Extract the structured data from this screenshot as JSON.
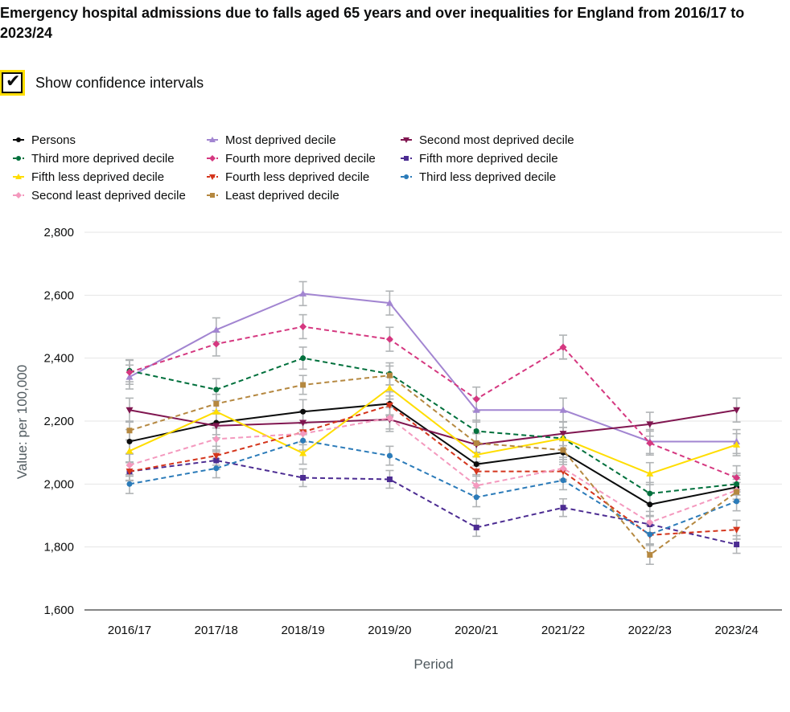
{
  "title": "Emergency hospital admissions due to falls aged 65 years and over inequalities for England from 2016/17 to 2023/24",
  "controls": {
    "ci_label": "Show confidence intervals",
    "ci_checked": true,
    "check_glyph": "✔"
  },
  "chart_data": {
    "type": "line",
    "xlabel": "Period",
    "ylabel": "Value: per 100,000",
    "ylim": [
      1600,
      2800
    ],
    "yticks": [
      1600,
      1800,
      2000,
      2200,
      2400,
      2600,
      2800
    ],
    "ytick_labels": [
      "1,600",
      "1,800",
      "2,000",
      "2,200",
      "2,400",
      "2,600",
      "2,800"
    ],
    "categories": [
      "2016/17",
      "2017/18",
      "2018/19",
      "2019/20",
      "2020/21",
      "2021/22",
      "2022/23",
      "2023/24"
    ],
    "grid": "horizontal",
    "legend_position": "top",
    "series": [
      {
        "name": "Persons",
        "color": "#0b0c0c",
        "marker": "circle",
        "dash": false,
        "values": [
          2135,
          2195,
          2230,
          2255,
          2063,
          2100,
          1935,
          1990
        ],
        "ci": 38
      },
      {
        "name": "Most deprived decile",
        "color": "#a285d1",
        "marker": "triangle-up",
        "dash": false,
        "values": [
          2340,
          2490,
          2605,
          2575,
          2235,
          2235,
          2135,
          2135
        ],
        "ci": 38
      },
      {
        "name": "Second most deprived decile",
        "color": "#801650",
        "marker": "triangle-down",
        "dash": false,
        "values": [
          2235,
          2185,
          2195,
          2205,
          2125,
          2160,
          2190,
          2235
        ],
        "ci": 38
      },
      {
        "name": "Third more deprived decile",
        "color": "#00703c",
        "marker": "circle",
        "dash": true,
        "values": [
          2360,
          2300,
          2400,
          2350,
          2168,
          2145,
          1970,
          2000
        ],
        "ci": 35
      },
      {
        "name": "Fourth more deprived decile",
        "color": "#d53880",
        "marker": "diamond",
        "dash": true,
        "values": [
          2355,
          2445,
          2500,
          2460,
          2270,
          2435,
          2130,
          2020
        ],
        "ci": 38
      },
      {
        "name": "Fifth more deprived decile",
        "color": "#4c2c92",
        "marker": "square",
        "dash": true,
        "values": [
          2040,
          2075,
          2020,
          2015,
          1862,
          1925,
          1872,
          1808
        ],
        "ci": 28
      },
      {
        "name": "Fifth less deprived decile",
        "color": "#ffdd00",
        "marker": "triangle-up",
        "dash": false,
        "values": [
          2105,
          2230,
          2098,
          2305,
          2093,
          2145,
          2033,
          2125
        ],
        "ci": 35
      },
      {
        "name": "Fourth less deprived decile",
        "color": "#d4351c",
        "marker": "triangle-down",
        "dash": true,
        "values": [
          2040,
          2090,
          2165,
          2250,
          2040,
          2040,
          1838,
          1855
        ],
        "ci": 30
      },
      {
        "name": "Third less deprived decile",
        "color": "#2b7bb9",
        "marker": "circle",
        "dash": true,
        "values": [
          2000,
          2050,
          2138,
          2090,
          1958,
          2012,
          1840,
          1945
        ],
        "ci": 30
      },
      {
        "name": "Second least deprived decile",
        "color": "#f499be",
        "marker": "diamond",
        "dash": true,
        "values": [
          2060,
          2143,
          2160,
          2210,
          1995,
          2050,
          1878,
          1980
        ],
        "ci": 35
      },
      {
        "name": "Least deprived decile",
        "color": "#b58840",
        "marker": "square",
        "dash": true,
        "values": [
          2170,
          2255,
          2315,
          2345,
          2130,
          2108,
          1775,
          1975
        ],
        "ci": 30
      }
    ]
  }
}
